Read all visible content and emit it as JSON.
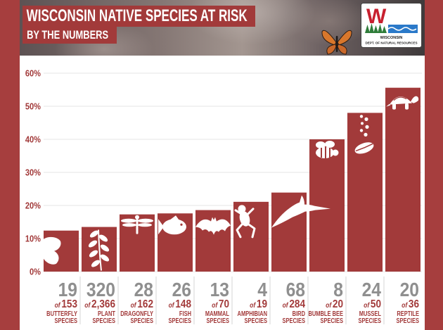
{
  "logo": {
    "monogram": "W",
    "name": "WISCONSIN",
    "agency": "DEPT. OF NATURAL RESOURCES",
    "icon": "wi-dnr-logo"
  },
  "colors": {
    "frame": "#a63e3e",
    "bar": "#a23a3a",
    "header_box": "#a23a3a",
    "axis_text": "#a23a3a",
    "count_text": "#8f8f8f",
    "grid": "#e6e6e6",
    "divider": "#d6d6d6",
    "logo_red": "#c8202f",
    "logo_green": "#2f7d3a",
    "logo_blue": "#2a79c9"
  },
  "chart_data": {
    "type": "bar",
    "title": "WISCONSIN NATIVE SPECIES AT RISK",
    "subtitle": "BY THE NUMBERS",
    "categories": [
      "BUTTERFLY",
      "PLANT",
      "DRAGONFLY",
      "FISH",
      "MAMMAL",
      "AMPHIBIAN",
      "BIRD",
      "BUMBLE BEE",
      "MUSSEL",
      "REPTILE"
    ],
    "values": [
      12.4,
      13.5,
      17.3,
      17.6,
      18.6,
      21.1,
      23.9,
      40.0,
      48.0,
      55.6
    ],
    "at_risk": [
      "19",
      "320",
      "28",
      "26",
      "13",
      "4",
      "68",
      "8",
      "24",
      "20"
    ],
    "totals": [
      "153",
      "2,366",
      "162",
      "148",
      "70",
      "19",
      "284",
      "20",
      "50",
      "36"
    ],
    "count_connector": "of",
    "category_suffix": "SPECIES",
    "ylim": [
      0,
      60
    ],
    "yticks": [
      0,
      10,
      20,
      30,
      40,
      50,
      60
    ],
    "ytick_labels": [
      "0%",
      "10%",
      "20%",
      "30%",
      "40%",
      "50%",
      "60%"
    ],
    "grid": true,
    "legend": "none",
    "icons": [
      "butterfly-icon",
      "plant-icon",
      "dragonfly-icon",
      "fish-icon",
      "bat-icon",
      "frog-icon",
      "crane-icon",
      "bee-icon",
      "mussel-icon",
      "turtle-icon"
    ]
  }
}
